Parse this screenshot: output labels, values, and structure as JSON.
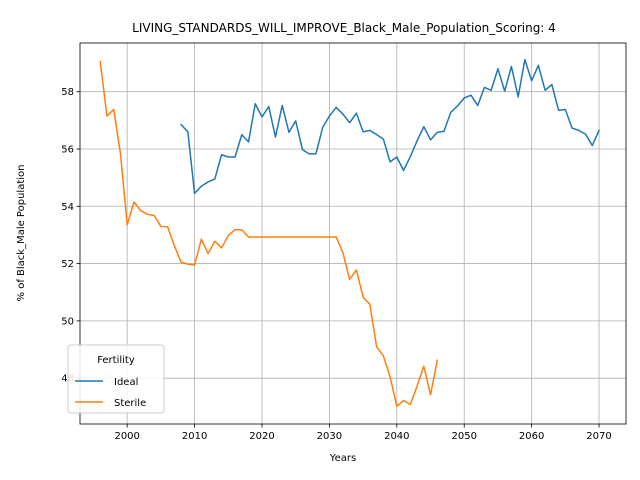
{
  "chart_data": {
    "type": "line",
    "title": "LIVING_STANDARDS_WILL_IMPROVE_Black_Male_Population_Scoring: 4",
    "xlabel": "Years",
    "ylabel": "% of Black_Male Population",
    "xlim": [
      1993,
      2074
    ],
    "ylim": [
      46.4,
      59.7
    ],
    "xticks": [
      2000,
      2010,
      2020,
      2030,
      2040,
      2050,
      2060,
      2070
    ],
    "yticks": [
      48,
      50,
      52,
      54,
      56,
      58
    ],
    "grid": true,
    "legend": {
      "title": "Fertility",
      "position": "lower-left"
    },
    "series": [
      {
        "name": "Ideal",
        "color": "#1f77b4",
        "x": [
          2008,
          2009,
          2010,
          2011,
          2012,
          2013,
          2014,
          2015,
          2016,
          2017,
          2018,
          2019,
          2020,
          2021,
          2022,
          2023,
          2024,
          2025,
          2026,
          2027,
          2028,
          2029,
          2030,
          2031,
          2032,
          2033,
          2034,
          2035,
          2036,
          2037,
          2038,
          2039,
          2040,
          2041,
          2042,
          2043,
          2044,
          2045,
          2046,
          2047,
          2048,
          2049,
          2050,
          2051,
          2052,
          2053,
          2054,
          2055,
          2056,
          2057,
          2058,
          2059,
          2060,
          2061,
          2062,
          2063,
          2064,
          2065,
          2066,
          2067,
          2068,
          2069,
          2070
        ],
        "y": [
          56.85,
          56.6,
          54.45,
          54.7,
          54.85,
          54.95,
          55.8,
          55.72,
          55.72,
          56.5,
          56.25,
          57.58,
          57.12,
          57.48,
          56.42,
          57.52,
          56.58,
          56.98,
          55.98,
          55.83,
          55.83,
          56.75,
          57.15,
          57.45,
          57.22,
          56.92,
          57.25,
          56.6,
          56.65,
          56.5,
          56.35,
          55.55,
          55.72,
          55.25,
          55.73,
          56.28,
          56.78,
          56.32,
          56.58,
          56.62,
          57.28,
          57.5,
          57.78,
          57.88,
          57.52,
          58.15,
          58.05,
          58.8,
          58.02,
          58.88,
          57.82,
          59.12,
          58.38,
          58.92,
          58.05,
          58.25,
          57.35,
          57.38,
          56.73,
          56.65,
          56.52,
          56.12,
          56.65
        ]
      },
      {
        "name": "Sterile",
        "color": "#ff7f0e",
        "x": [
          1996,
          1997,
          1998,
          1999,
          2000,
          2001,
          2002,
          2003,
          2004,
          2005,
          2006,
          2007,
          2008,
          2009,
          2010,
          2011,
          2012,
          2013,
          2014,
          2015,
          2016,
          2017,
          2018,
          2019,
          2020,
          2021,
          2022,
          2023,
          2024,
          2025,
          2026,
          2027,
          2028,
          2029,
          2030,
          2031,
          2032,
          2033,
          2034,
          2035,
          2036,
          2037,
          2038,
          2039,
          2040,
          2041,
          2042,
          2043,
          2044,
          2045,
          2046
        ],
        "y": [
          59.05,
          57.15,
          57.38,
          55.85,
          53.35,
          54.15,
          53.85,
          53.72,
          53.68,
          53.3,
          53.28,
          52.62,
          52.05,
          51.98,
          51.95,
          52.85,
          52.35,
          52.78,
          52.55,
          52.98,
          53.18,
          53.18,
          52.93,
          52.93,
          52.93,
          52.93,
          52.93,
          52.93,
          52.93,
          52.93,
          52.93,
          52.93,
          52.93,
          52.93,
          52.93,
          52.93,
          52.38,
          51.45,
          51.78,
          50.83,
          50.58,
          49.1,
          48.78,
          48.05,
          47.02,
          47.22,
          47.08,
          47.72,
          48.42,
          47.42,
          48.62
        ]
      }
    ]
  }
}
